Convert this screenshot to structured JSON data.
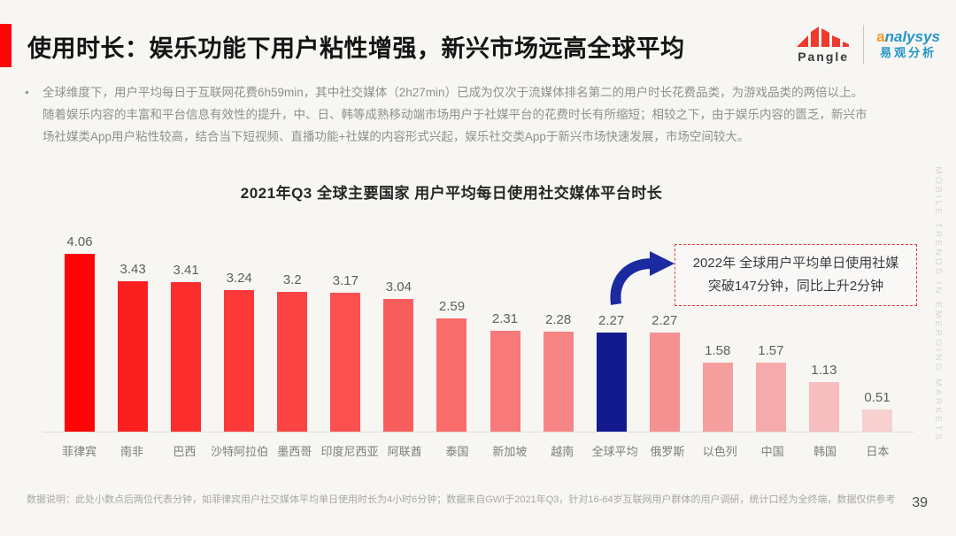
{
  "header": {
    "title": "使用时长：娱乐功能下用户粘性增强，新兴市场远高全球平均",
    "pangle_logo_text": "Pangle",
    "analysys_logo_first_letter": "a",
    "analysys_logo_rest": "nalysys",
    "analysys_logo_cn": "易观分析"
  },
  "intro": {
    "bullet": "•",
    "text": "全球维度下，用户平均每日于互联网花费6h59min，其中社交媒体（2h27min）已成为仅次于流媒体排名第二的用户时长花费品类，为游戏品类的两倍以上。随着娱乐内容的丰富和平台信息有效性的提升，中、日、韩等成熟移动端市场用户于社媒平台的花费时长有所缩短；相较之下，由于娱乐内容的匮乏，新兴市场社媒类App用户粘性较高，结合当下短视频、直播功能+社媒的内容形式兴起，娱乐社交类App于新兴市场快速发展，市场空间较大。"
  },
  "chart_data": {
    "type": "bar",
    "title": "2021年Q3 全球主要国家 用户平均每日使用社交媒体平台时长",
    "categories": [
      "菲律宾",
      "南非",
      "巴西",
      "沙特阿拉伯",
      "墨西哥",
      "印度尼西亚",
      "阿联酋",
      "泰国",
      "新加坡",
      "越南",
      "全球平均",
      "俄罗斯",
      "以色列",
      "中国",
      "韩国",
      "日本"
    ],
    "values": [
      4.06,
      3.43,
      3.41,
      3.24,
      3.2,
      3.17,
      3.04,
      2.59,
      2.31,
      2.28,
      2.27,
      2.27,
      1.58,
      1.57,
      1.13,
      0.51
    ],
    "value_labels": [
      "4.06",
      "3.43",
      "3.41",
      "3.24",
      "3.2",
      "3.17",
      "3.04",
      "2.59",
      "2.31",
      "2.28",
      "2.27",
      "2.27",
      "1.58",
      "1.57",
      "1.13",
      "0.51"
    ],
    "bar_colors": [
      "#fe0404",
      "#fc1f1f",
      "#fc2d2d",
      "#fb3939",
      "#fb4343",
      "#fa5050",
      "#f95e5e",
      "#f86c6c",
      "#f87979",
      "#f78585",
      "#131a90",
      "#f59191",
      "#f59f9f",
      "#f5abab",
      "#f6bebe",
      "#f8d0d0"
    ],
    "highlight_index": 10,
    "highlight_color": "#131a90",
    "xlabel": "",
    "ylabel": "",
    "ylim": [
      0,
      4.3
    ],
    "grid": false,
    "legend": null,
    "annotation": "2022年 全球用户平均单日使用社媒 突破147分钟，同比上升2分钟"
  },
  "annotation": {
    "line1": "2022年 全球用户平均单日使用社媒",
    "line2": "突破147分钟，同比上升2分钟",
    "border_color": "#e03a30",
    "arrow_color": "#1c2aa0"
  },
  "watermark": "MOBILE TRENDS IN EMERGING MARKETS",
  "footer": {
    "note": "数据说明：此处小数点后两位代表分钟，如菲律宾用户社交媒体平均单日使用时长为4小时6分钟；数据来自GWI于2021年Q3，针对16-64岁互联网用户群体的用户调研，统计口经为全终端，数据仅供参考",
    "page_number": "39"
  },
  "colors": {
    "accent_red": "#fe0505",
    "pangle_red": "#ee392c",
    "analysys_blue": "#2496c8",
    "analysys_orange": "#f59a23",
    "navy": "#131a90",
    "background": "#f7f6f3"
  }
}
